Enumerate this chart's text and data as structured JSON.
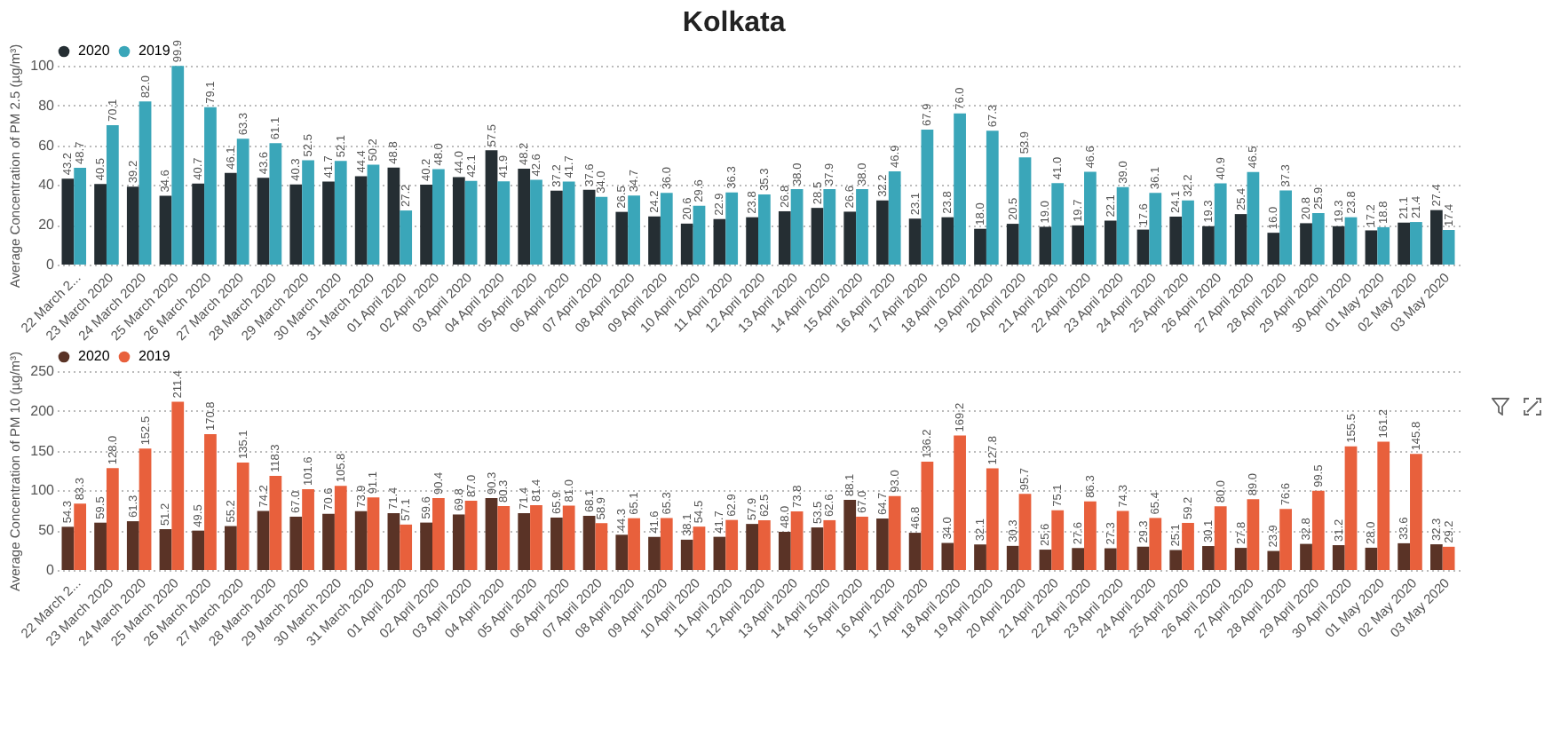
{
  "chart_data": [
    {
      "type": "bar",
      "title": "Kolkata",
      "ylabel": "Average Concentration of PM 2.5 (µg/m³)",
      "categories": [
        "22 March 2...",
        "23 March 2020",
        "24 March 2020",
        "25 March 2020",
        "26 March 2020",
        "27 March 2020",
        "28 March 2020",
        "29 March 2020",
        "30 March 2020",
        "31 March 2020",
        "01 April 2020",
        "02 April 2020",
        "03 April 2020",
        "04 April 2020",
        "05 April 2020",
        "06 April 2020",
        "07 April 2020",
        "08 April 2020",
        "09 April 2020",
        "10 April 2020",
        "11 April 2020",
        "12 April 2020",
        "13 April 2020",
        "14 April 2020",
        "15 April 2020",
        "16 April 2020",
        "17 April 2020",
        "18 April 2020",
        "19 April 2020",
        "20 April 2020",
        "21 April 2020",
        "22 April 2020",
        "23 April 2020",
        "24 April 2020",
        "25 April 2020",
        "26 April 2020",
        "27 April 2020",
        "28 April 2020",
        "29 April 2020",
        "30 April 2020",
        "01 May 2020",
        "02 May 2020",
        "03 May 2020"
      ],
      "series": [
        {
          "name": "2020",
          "color": "#252e33",
          "values": [
            43.2,
            40.5,
            39.2,
            34.6,
            40.7,
            46.1,
            43.6,
            40.3,
            41.7,
            44.4,
            48.8,
            40.2,
            44.0,
            57.5,
            48.2,
            37.2,
            37.6,
            26.5,
            24.2,
            20.6,
            22.9,
            23.8,
            26.8,
            28.5,
            26.6,
            32.2,
            23.1,
            23.8,
            18.0,
            20.5,
            19.0,
            19.7,
            22.1,
            17.6,
            24.1,
            19.3,
            25.4,
            16.0,
            20.8,
            19.3,
            17.2,
            21.1,
            27.4
          ],
          "value_labels": [
            "43.2",
            "40.5",
            "39.2",
            "34.6",
            "40.7",
            "46.1",
            "43.6",
            "40.3",
            "41.7",
            "44.4",
            "48.8",
            "40.2",
            "44.0",
            "57.5",
            "48.2",
            "37.2",
            "37.6",
            "26.5",
            "24.2",
            "20.6",
            "22.9",
            "23.8",
            "26.8",
            "28.5",
            "26.6",
            "32.2",
            "23.1",
            "23.8",
            "18.0",
            "20.5",
            "19.0",
            "19.7",
            "22.1",
            "17.6",
            "24.1",
            "19.3",
            "25.4",
            "16.0",
            "20.8",
            "19.3",
            "17.2",
            "21.1",
            "27.4"
          ]
        },
        {
          "name": "2019",
          "color": "#3aa6b9",
          "values": [
            48.7,
            70.1,
            82.0,
            99.9,
            79.1,
            63.3,
            61.1,
            52.5,
            52.1,
            50.2,
            27.2,
            48.0,
            42.1,
            41.9,
            42.6,
            41.7,
            34.0,
            34.7,
            36.0,
            29.6,
            36.3,
            35.3,
            38.0,
            37.9,
            38.0,
            46.9,
            67.9,
            76.0,
            67.3,
            53.9,
            41.0,
            46.6,
            39.0,
            36.1,
            32.2,
            40.9,
            46.5,
            37.3,
            25.9,
            23.8,
            18.8,
            21.4,
            17.4
          ],
          "value_labels": [
            "48.7",
            "70.1",
            "82.0",
            "99.9",
            "79.1",
            "63.3",
            "61.1",
            "52.5",
            "52.1",
            "50.2",
            "27.2",
            "48.0",
            "42.1",
            "41.9",
            "42.6",
            "41.7",
            "34.0",
            "34.7",
            "36.0",
            "29.6",
            "36.3",
            "35.3",
            "38.0",
            "37.9",
            "38.0",
            "46.9",
            "67.9",
            "76.0",
            "67.3",
            "53.9",
            "41.0",
            "46.6",
            "39.0",
            "36.1",
            "32.2",
            "40.9",
            "46.5",
            "37.3",
            "25.9",
            "23.8",
            "18.8",
            "21.4",
            "17.4"
          ]
        }
      ],
      "ylim": [
        0,
        100
      ],
      "yticks": [
        0,
        20,
        40,
        60,
        80,
        100
      ],
      "grid": "y",
      "legend": "top left"
    },
    {
      "type": "bar",
      "ylabel": "Average Concentration of PM 10 (µg/m³)",
      "categories": [
        "22 March 2...",
        "23 March 2020",
        "24 March 2020",
        "25 March 2020",
        "26 March 2020",
        "27 March 2020",
        "28 March 2020",
        "29 March 2020",
        "30 March 2020",
        "31 March 2020",
        "01 April 2020",
        "02 April 2020",
        "03 April 2020",
        "04 April 2020",
        "05 April 2020",
        "06 April 2020",
        "07 April 2020",
        "08 April 2020",
        "09 April 2020",
        "10 April 2020",
        "11 April 2020",
        "12 April 2020",
        "13 April 2020",
        "14 April 2020",
        "15 April 2020",
        "16 April 2020",
        "17 April 2020",
        "18 April 2020",
        "19 April 2020",
        "20 April 2020",
        "21 April 2020",
        "22 April 2020",
        "23 April 2020",
        "24 April 2020",
        "25 April 2020",
        "26 April 2020",
        "27 April 2020",
        "28 April 2020",
        "29 April 2020",
        "30 April 2020",
        "01 May 2020",
        "02 May 2020",
        "03 May 2020"
      ],
      "series": [
        {
          "name": "2020",
          "color": "#5a3326",
          "values": [
            54.3,
            59.5,
            61.3,
            51.2,
            49.5,
            55.2,
            74.2,
            67.0,
            70.6,
            73.9,
            71.4,
            59.6,
            69.8,
            90.3,
            71.4,
            65.9,
            68.1,
            44.3,
            41.6,
            38.1,
            41.7,
            57.9,
            48.0,
            53.5,
            88.1,
            64.7,
            46.8,
            34.0,
            32.1,
            30.3,
            25.6,
            27.6,
            27.3,
            29.3,
            25.1,
            30.1,
            27.8,
            23.9,
            32.8,
            31.2,
            28.0,
            33.6,
            32.3
          ],
          "value_labels": [
            "54.3",
            "59.5",
            "61.3",
            "51.2",
            "49.5",
            "55.2",
            "74.2",
            "67.0",
            "70.6",
            "73.9",
            "71.4",
            "59.6",
            "69.8",
            "90.3",
            "71.4",
            "65.9",
            "68.1",
            "44.3",
            "41.6",
            "38.1",
            "41.7",
            "57.9",
            "48.0",
            "53.5",
            "88.1",
            "64.7",
            "46.8",
            "34.0",
            "32.1",
            "30.3",
            "25.6",
            "27.6",
            "27.3",
            "29.3",
            "25.1",
            "30.1",
            "27.8",
            "23.9",
            "32.8",
            "31.2",
            "28.0",
            "33.6",
            "32.3"
          ]
        },
        {
          "name": "2019",
          "color": "#e8603c",
          "values": [
            83.3,
            128.0,
            152.5,
            211.4,
            170.8,
            135.1,
            118.3,
            101.6,
            105.8,
            91.1,
            57.1,
            90.4,
            87.0,
            80.3,
            81.4,
            81.0,
            58.9,
            65.1,
            65.3,
            54.5,
            62.9,
            62.5,
            73.8,
            62.6,
            67.0,
            93.0,
            136.2,
            169.2,
            127.8,
            95.7,
            75.1,
            86.3,
            74.3,
            65.4,
            59.2,
            80.0,
            89.0,
            76.6,
            99.5,
            155.5,
            161.2,
            145.8,
            29.2
          ],
          "value_labels": [
            "83.3",
            "128.0",
            "152.5",
            "211.4",
            "170.8",
            "135.1",
            "118.3",
            "101.6",
            "105.8",
            "91.1",
            "57.1",
            "90.4",
            "87.0",
            "80.3",
            "81.4",
            "81.0",
            "58.9",
            "65.1",
            "65.3",
            "54.5",
            "62.9",
            "62.5",
            "73.8",
            "62.6",
            "67.0",
            "93.0",
            "136.2",
            "169.2",
            "127.8",
            "95.7",
            "75.1",
            "86.3",
            "74.3",
            "65.4",
            "59.2",
            "80.0",
            "89.0",
            "76.6",
            "99.5",
            "155.5",
            "161.2",
            "145.8",
            "29.2"
          ]
        }
      ],
      "ylim": [
        0,
        250
      ],
      "yticks": [
        0,
        50,
        100,
        150,
        200,
        250
      ],
      "grid": "y",
      "legend": "top left"
    }
  ]
}
